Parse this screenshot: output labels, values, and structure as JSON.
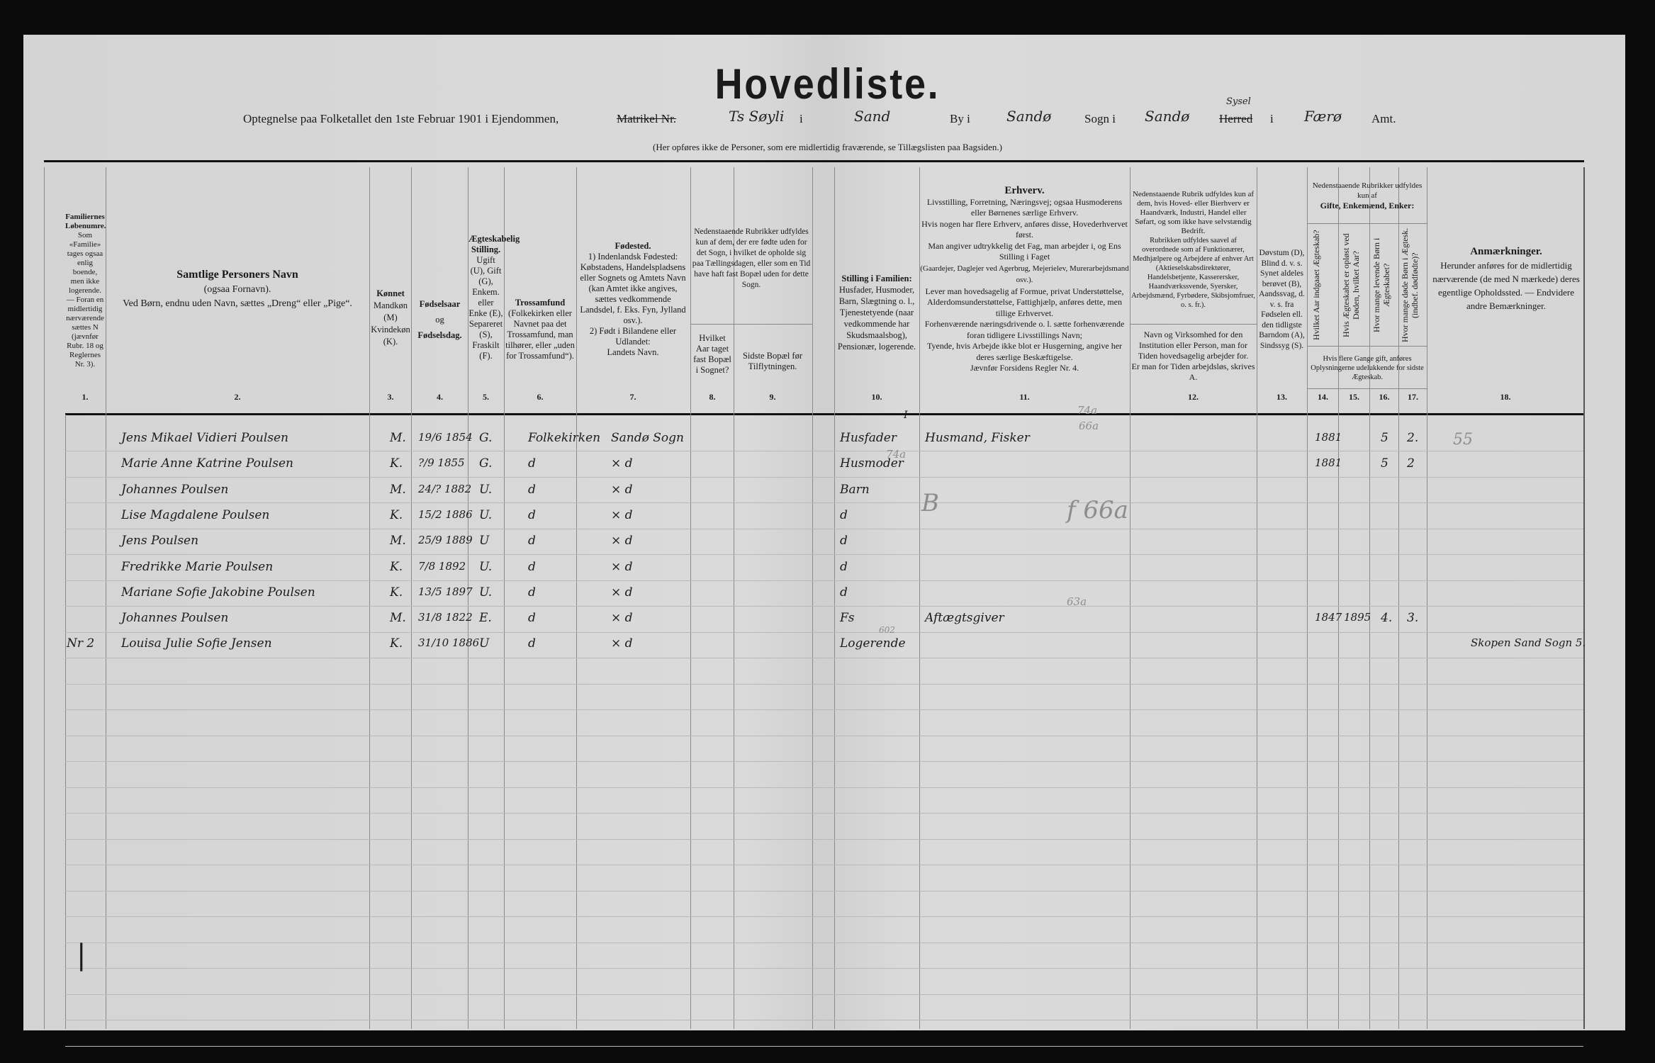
{
  "header": {
    "title": "Hovedliste.",
    "intro": "Optegnelse paa Folketallet den 1ste Februar 1901 i Ejendommen,",
    "matrikel_label": "Matrikel Nr.",
    "property": "Ts Søyli",
    "i1": "i",
    "place": "Sand",
    "by_label": "By i",
    "by_value": "Sandø",
    "sogn_label": "Sogn i",
    "sogn_value": "Sandø",
    "herred_label": "Herred",
    "herred_replacement": "Sysel",
    "i2": "i",
    "amt_value": "Færø",
    "amt_label": "Amt.",
    "note": "(Her opføres ikke de Personer, som ere midlertidig fraværende, se Tillægslisten paa Bagsiden.)"
  },
  "columns": {
    "c1": {
      "title": "Familiernes Løbenumre.",
      "text": "Som «Familie» tages ogsaa enlig boende, men ikke logerende. — Foran en midlertidig nærværende sættes N (jævnfør Rubr. 18 og Reglernes Nr. 3).",
      "num": "1."
    },
    "c2": {
      "title": "Samtlige Personers Navn",
      "text1": "(ogsaa Fornavn).",
      "text2": "Ved Børn, endnu uden Navn, sættes „Dreng“ eller „Pige“.",
      "num": "2."
    },
    "c3": {
      "title": "Kønnet",
      "text": "Mandkøn (M) Kvindekøn (K).",
      "num": "3."
    },
    "c4": {
      "title": "Fødselsaar",
      "mid": "og",
      "title2": "Fødselsdag.",
      "num": "4."
    },
    "c5": {
      "title": "Ægteskabelig Stilling.",
      "text": "Ugift (U), Gift (G), Enkem. eller Enke (E), Separeret (S), Fraskilt (F).",
      "num": "5."
    },
    "c6": {
      "title": "Trossamfund",
      "text": "(Folkekirken eller Navnet paa det Trossamfund, man tilhører, eller „uden for Trossamfund“).",
      "num": "6."
    },
    "c7": {
      "title": "Fødested.",
      "text1": "1) Indenlandsk Fødested:",
      "text2": "Købstadens, Handelspladsens eller Sognets og Amtets Navn (kan Amtet ikke angives, sættes vedkommende Landsdel, f. Eks. Fyn, Jylland osv.).",
      "text3": "2) Født i Bilandene eller Udlandet:",
      "text4": "Landets Navn.",
      "num": "7."
    },
    "c89": {
      "text": "Nedenstaaende Rubrikker udfyldes kun af dem, der ere fødte uden for det Sogn, i hvilket de opholde sig paa Tællingsdagen, eller som en Tid have haft fast Bopæl uden for dette Sogn."
    },
    "c8": {
      "text": "Hvilket Aar taget fast Bopæl i Sognet?",
      "num": "8."
    },
    "c9": {
      "text": "Sidste Bopæl før Tilflytningen.",
      "num": "9."
    },
    "c10": {
      "title": "Stilling i Familien:",
      "text": "Husfader, Husmoder, Barn, Slægtning o. l., Tjenestetyende (naar vedkommende har Skudsmaalsbog), Pensionær, logerende.",
      "num": "10."
    },
    "c11": {
      "title": "Erhverv.",
      "text1": "Livsstilling, Forretning, Næringsvej; ogsaa Husmoderens eller Børnenes særlige Erhverv.",
      "text2": "Hvis nogen har flere Erhverv, anføres disse, Hovederhvervet først.",
      "text3": "Man angiver udtrykkelig det Fag, man arbejder i, og Ens Stilling i Faget",
      "text4": "(Gaardejer, Daglejer ved Agerbrug, Mejerielev, Murerarbejdsmand osv.).",
      "text5": "Lever man hovedsagelig af Formue, privat Understøttelse, Alderdomsunderstøttelse, Fattighjælp, anføres dette, men tillige Erhvervet.",
      "text6": "Forhenværende næringsdrivende o. l. sætte forhenværende foran tidligere Livsstillings Navn;",
      "text7": "Tyende, hvis Arbejde ikke blot er Husgerning, angive her deres særlige Beskæftigelse.",
      "text8": "Jævnfør Forsidens Regler Nr. 4.",
      "num": "11."
    },
    "c12": {
      "text1": "Nedenstaaende Rubrik udfyldes kun af dem, hvis Hoved- eller Bierhverv er Haandværk, Industri, Handel eller Søfart, og som ikke have selvstændig Bedrift.",
      "text2": "Rubrikken udfyldes saavel af overordnede som af Funktionærer, Medhjælpere og Arbejdere af enhver Art (Aktieselskabsdirektører, Handelsbetjente, Kasserersker, Haandværkssvende, Syersker, Arbejdsmænd, Fyrbødere, Skibsjomfruer, o. s. fr.).",
      "text3": "Navn og Virksomhed for den Institution eller Person, man for Tiden hovedsagelig arbejder for.",
      "text4": "Er man for Tiden arbejdsløs, skrives A.",
      "num": "12."
    },
    "c13": {
      "text": "Døvstum (D), Blind d. v. s. Synet aldeles berøvet (B), Aandssvag, d. v. s. fra Fødselen ell. den tidligste Barndom (A), Sindssyg (S).",
      "num": "13."
    },
    "c1417": {
      "text": "Nedenstaaende Rubrikker udfyldes kun af",
      "bold": "Gifte, Enkemænd, Enker:",
      "note": "Hvis flere Gange gift, anføres Oplysningerne udelukkende for sidste Ægteskab."
    },
    "c14": {
      "text": "Hvilket Aar indgaaet Ægteskab?",
      "num": "14."
    },
    "c15": {
      "text": "Hvis Ægteskabet er opløst ved Døden, hvilket Aar?",
      "num": "15."
    },
    "c16": {
      "text": "Hvor mange levende Børn i Ægteskabet?",
      "num": "16."
    },
    "c17": {
      "text": "Hvor mange døde Børn i Ægtesk. (indbef. dødfødte)?",
      "num": "17."
    },
    "c18": {
      "title": "Anmærkninger.",
      "text": "Herunder anføres for de midlertidig nærværende (de med N mærkede) deres egentlige Opholdssted. — Endvidere andre Bemærkninger.",
      "num": "18."
    }
  },
  "rows": [
    {
      "family": "",
      "name": "Jens Mikael Vidieri Poulsen",
      "sex": "M.",
      "born": "19/6 1854",
      "status": "G.",
      "faith": "Folkekirken",
      "birthplace": "Sandø Sogn",
      "position": "Husfader",
      "occupation": "Husmand, Fisker",
      "married": "1881",
      "dissolved": "",
      "living": "5",
      "dead": "2.",
      "remarks": "55"
    },
    {
      "family": "",
      "name": "Marie Anne Katrine Poulsen",
      "sex": "K.",
      "born": "?/9 1855",
      "status": "G.",
      "faith": "d",
      "birthplace": "× d",
      "position": "Husmoder",
      "occupation": "",
      "married": "1881",
      "dissolved": "",
      "living": "5",
      "dead": "2",
      "remarks": ""
    },
    {
      "family": "",
      "name": "Johannes Poulsen",
      "sex": "M.",
      "born": "24/? 1882",
      "status": "U.",
      "faith": "d",
      "birthplace": "× d",
      "position": "Barn",
      "occupation": "",
      "married": "",
      "dissolved": "",
      "living": "",
      "dead": "",
      "remarks": ""
    },
    {
      "family": "",
      "name": "Lise Magdalene Poulsen",
      "sex": "K.",
      "born": "15/2 1886",
      "status": "U.",
      "faith": "d",
      "birthplace": "× d",
      "position": "d",
      "occupation": "",
      "married": "",
      "dissolved": "",
      "living": "",
      "dead": "",
      "remarks": ""
    },
    {
      "family": "",
      "name": "Jens Poulsen",
      "sex": "M.",
      "born": "25/9 1889",
      "status": "U",
      "faith": "d",
      "birthplace": "× d",
      "position": "d",
      "occupation": "",
      "married": "",
      "dissolved": "",
      "living": "",
      "dead": "",
      "remarks": ""
    },
    {
      "family": "",
      "name": "Fredrikke Marie Poulsen",
      "sex": "K.",
      "born": "7/8 1892",
      "status": "U.",
      "faith": "d",
      "birthplace": "× d",
      "position": "d",
      "occupation": "",
      "married": "",
      "dissolved": "",
      "living": "",
      "dead": "",
      "remarks": ""
    },
    {
      "family": "",
      "name": "Mariane Sofie Jakobine Poulsen",
      "sex": "K.",
      "born": "13/5 1897",
      "status": "U.",
      "faith": "d",
      "birthplace": "× d",
      "position": "d",
      "occupation": "",
      "married": "",
      "dissolved": "",
      "living": "",
      "dead": "",
      "remarks": ""
    },
    {
      "family": "",
      "name": "Johannes Poulsen",
      "sex": "M.",
      "born": "31/8 1822",
      "status": "E.",
      "faith": "d",
      "birthplace": "× d",
      "position": "Fs",
      "occupation": "Aftægtsgiver",
      "married": "1847",
      "dissolved": "1895",
      "living": "4.",
      "dead": "3.",
      "remarks": ""
    },
    {
      "family": "Nr 2",
      "name": "Louisa Julie Sofie Jensen",
      "sex": "K.",
      "born": "31/10 1886",
      "status": "U",
      "faith": "d",
      "birthplace": "× d",
      "position": "Logerende",
      "occupation": "",
      "married": "",
      "dissolved": "",
      "living": "",
      "dead": "",
      "remarks": "Skopen Sand Sogn 5."
    }
  ],
  "pencil_marks": {
    "m1": "74a",
    "m2": "66a",
    "m3": "74a",
    "m4": "f 66a",
    "m5": "B",
    "m6": "63a",
    "m7": "602",
    "m8": "I"
  },
  "margin_mark": "|"
}
